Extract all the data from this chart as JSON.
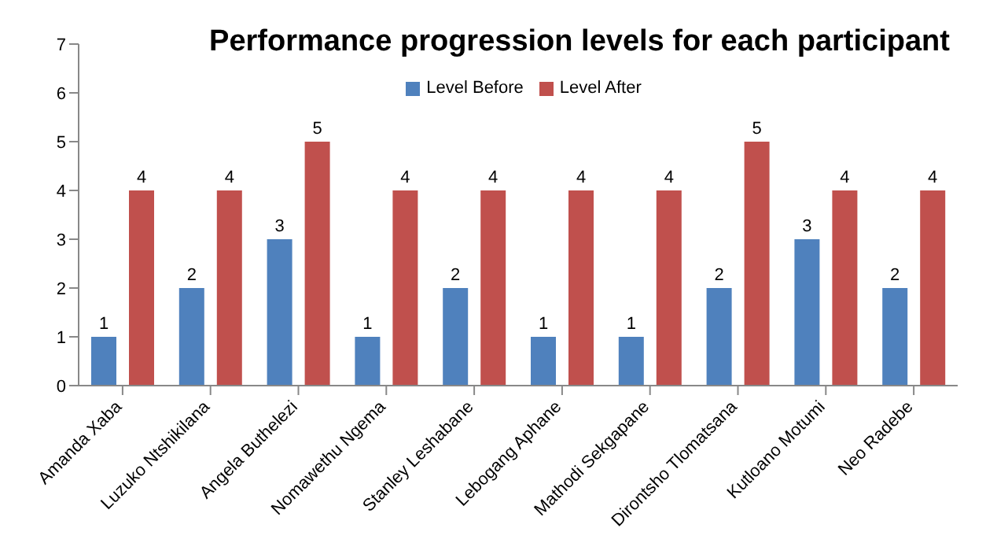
{
  "chart_data": {
    "type": "bar",
    "title": "Performance progression levels for each participant",
    "categories": [
      "Amanda Xaba",
      "Luzuko Ntshikilana",
      "Angela Buthelezi",
      "Nomawethu Ngema",
      "Stanley Leshabane",
      "Lebogang Aphane",
      "Mathodi Sekgapane",
      "Dirontsho Tlomatsana",
      "Kutloano Motumi",
      "Neo Radebe"
    ],
    "series": [
      {
        "name": "Level Before",
        "color": "#4f81bd",
        "values": [
          1,
          2,
          3,
          1,
          2,
          1,
          1,
          2,
          3,
          2
        ]
      },
      {
        "name": "Level After",
        "color": "#c0504d",
        "values": [
          4,
          4,
          5,
          4,
          4,
          4,
          4,
          5,
          4,
          4
        ]
      }
    ],
    "ylim": [
      0,
      7
    ],
    "yticks": [
      0,
      1,
      2,
      3,
      4,
      5,
      6,
      7
    ],
    "grid": false,
    "legend": "top",
    "data_labels": true
  }
}
